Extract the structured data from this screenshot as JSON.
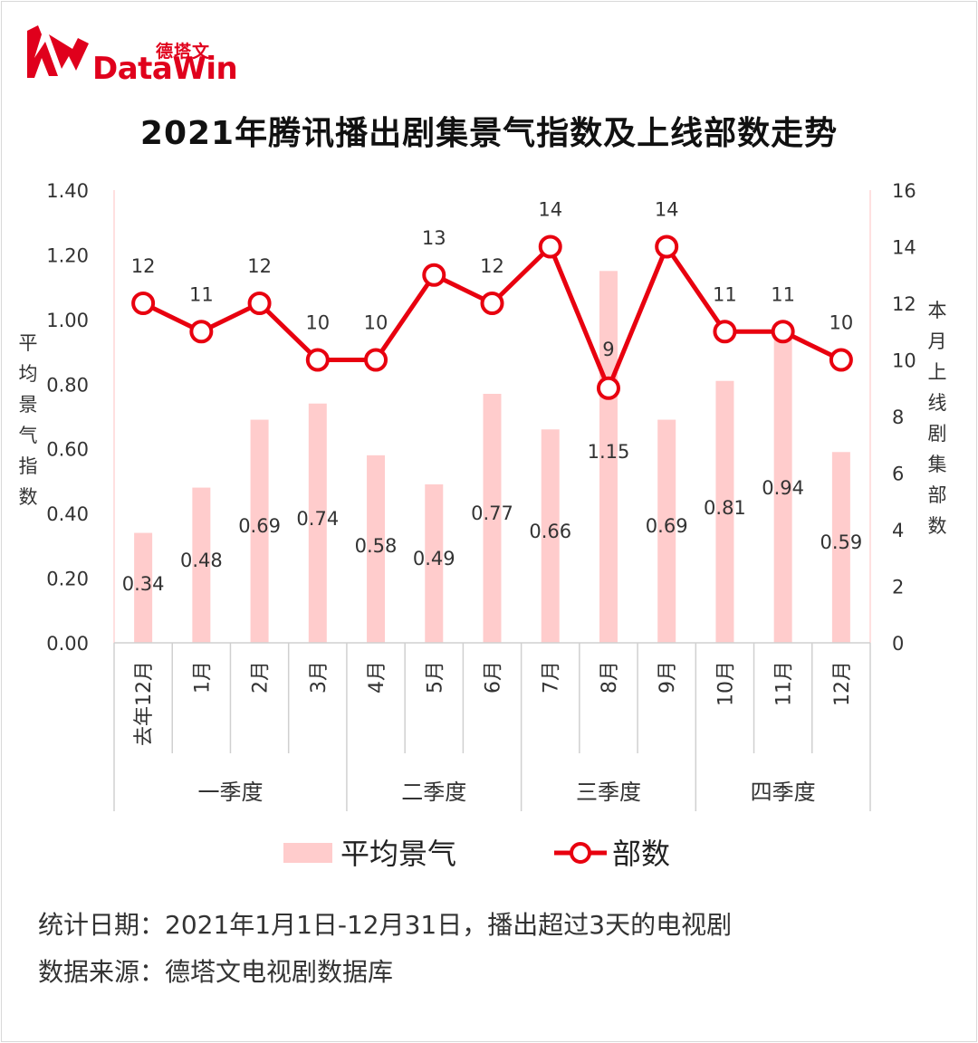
{
  "logo": {
    "cn": "德塔文",
    "en": "DataWin"
  },
  "title": "2021年腾讯播出剧集景气指数及上线部数走势",
  "axes": {
    "left_label": "平均景气指数",
    "right_label": "本月上线剧集部数"
  },
  "legend": {
    "bars": "平均景气",
    "line": "部数"
  },
  "footer": {
    "line1": "统计日期：2021年1月1日-12月31日，播出超过3天的电视剧",
    "line2": "数据来源：德塔文电视剧数据库"
  },
  "colors": {
    "bar": "#ffcccc",
    "line": "#e8000f",
    "marker_fill": "#ffffff",
    "brand": "#e0001c"
  },
  "chart_data": {
    "type": "bar",
    "categories": [
      "去年12月",
      "1月",
      "2月",
      "3月",
      "4月",
      "5月",
      "6月",
      "7月",
      "8月",
      "9月",
      "10月",
      "11月",
      "12月"
    ],
    "groups": [
      {
        "label": "一季度",
        "from": 0,
        "to": 3
      },
      {
        "label": "二季度",
        "from": 4,
        "to": 6
      },
      {
        "label": "三季度",
        "from": 7,
        "to": 9
      },
      {
        "label": "四季度",
        "from": 10,
        "to": 12
      }
    ],
    "series": [
      {
        "name": "平均景气",
        "type": "bar",
        "axis": "left",
        "values": [
          0.34,
          0.48,
          0.69,
          0.74,
          0.58,
          0.49,
          0.77,
          0.66,
          1.15,
          0.69,
          0.81,
          0.94,
          0.59
        ]
      },
      {
        "name": "部数",
        "type": "line",
        "axis": "right",
        "values": [
          12,
          11,
          12,
          10,
          10,
          13,
          12,
          14,
          9,
          14,
          11,
          11,
          10
        ]
      }
    ],
    "ylim_left": [
      0,
      1.4
    ],
    "yticks_left": [
      "0.00",
      "0.20",
      "0.40",
      "0.60",
      "0.80",
      "1.00",
      "1.20",
      "1.40"
    ],
    "ylim_right": [
      0,
      16
    ],
    "yticks_right": [
      "0",
      "2",
      "4",
      "6",
      "8",
      "10",
      "12",
      "14",
      "16"
    ],
    "grid": false,
    "legend_position": "bottom"
  }
}
